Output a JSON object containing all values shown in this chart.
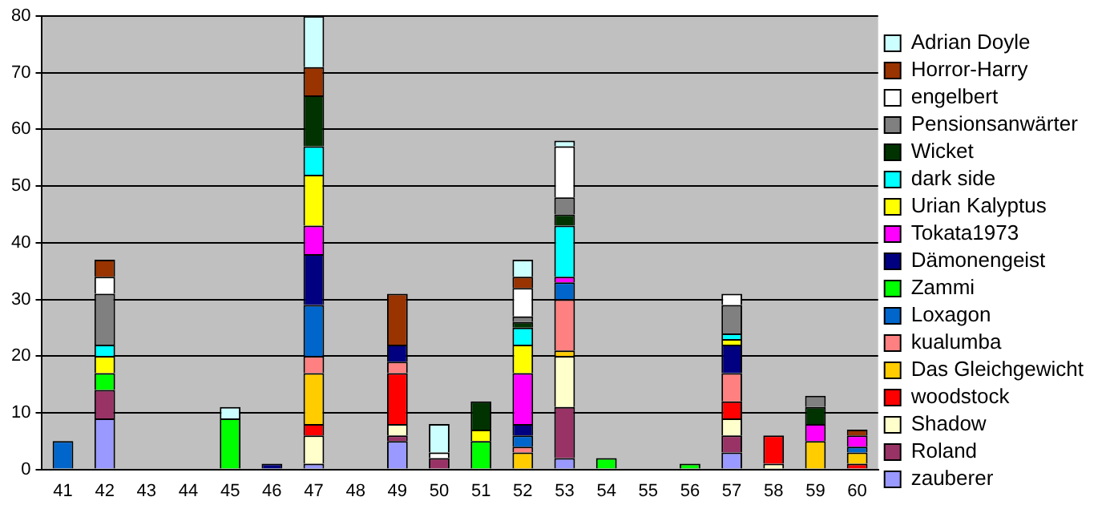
{
  "chart_data": {
    "type": "bar",
    "stacked": true,
    "legend": "right",
    "grid": "y",
    "categories": [
      "41",
      "42",
      "43",
      "44",
      "45",
      "46",
      "47",
      "48",
      "49",
      "50",
      "51",
      "52",
      "53",
      "54",
      "55",
      "56",
      "57",
      "58",
      "59",
      "60"
    ],
    "ylim": [
      0,
      80
    ],
    "yticks": [
      0,
      10,
      20,
      30,
      40,
      50,
      60,
      70,
      80
    ],
    "series": [
      {
        "name": "zauberer",
        "color": "#9999ff",
        "values": [
          null,
          9,
          null,
          null,
          null,
          null,
          1,
          null,
          5,
          null,
          null,
          null,
          2,
          null,
          null,
          null,
          3,
          null,
          null,
          null
        ]
      },
      {
        "name": "Roland",
        "color": "#993366",
        "values": [
          null,
          5,
          null,
          null,
          null,
          null,
          null,
          null,
          1,
          2,
          null,
          null,
          9,
          null,
          null,
          null,
          3,
          null,
          null,
          null
        ]
      },
      {
        "name": "Shadow",
        "color": "#ffffcc",
        "values": [
          null,
          null,
          null,
          null,
          null,
          null,
          5,
          null,
          2,
          null,
          null,
          null,
          9,
          null,
          null,
          null,
          3,
          1,
          null,
          null
        ]
      },
      {
        "name": "woodstock",
        "color": "#ff0000",
        "values": [
          null,
          null,
          null,
          null,
          null,
          null,
          2,
          null,
          9,
          null,
          null,
          null,
          null,
          null,
          null,
          null,
          3,
          5,
          null,
          1
        ]
      },
      {
        "name": "Das Gleichgewicht",
        "color": "#ffcc00",
        "values": [
          null,
          null,
          null,
          null,
          null,
          null,
          9,
          null,
          null,
          null,
          null,
          3,
          1,
          null,
          null,
          null,
          null,
          null,
          5,
          2
        ]
      },
      {
        "name": "kualumba",
        "color": "#ff8080",
        "values": [
          null,
          null,
          null,
          null,
          null,
          null,
          3,
          null,
          2,
          null,
          null,
          1,
          9,
          null,
          null,
          null,
          5,
          null,
          null,
          null
        ]
      },
      {
        "name": "Loxagon",
        "color": "#0066cc",
        "values": [
          5,
          null,
          null,
          null,
          null,
          null,
          9,
          null,
          null,
          null,
          null,
          2,
          3,
          null,
          null,
          null,
          null,
          null,
          null,
          1
        ]
      },
      {
        "name": "Zammi",
        "color": "#00ff00",
        "values": [
          null,
          3,
          null,
          null,
          9,
          null,
          null,
          null,
          null,
          null,
          5,
          null,
          null,
          2,
          null,
          1,
          null,
          null,
          null,
          null
        ]
      },
      {
        "name": "Dämonengeist",
        "color": "#000080",
        "values": [
          null,
          null,
          null,
          null,
          null,
          1,
          9,
          null,
          3,
          null,
          null,
          2,
          null,
          null,
          null,
          null,
          5,
          null,
          null,
          null
        ]
      },
      {
        "name": "Tokata1973",
        "color": "#ff00ff",
        "values": [
          null,
          null,
          null,
          null,
          null,
          null,
          5,
          null,
          null,
          null,
          null,
          9,
          1,
          null,
          null,
          null,
          null,
          null,
          3,
          2
        ]
      },
      {
        "name": "Urian Kalyptus",
        "color": "#ffff00",
        "values": [
          null,
          3,
          null,
          null,
          null,
          null,
          9,
          null,
          null,
          null,
          2,
          5,
          null,
          null,
          null,
          null,
          1,
          null,
          null,
          null
        ]
      },
      {
        "name": "dark side",
        "color": "#00ffff",
        "values": [
          null,
          2,
          null,
          null,
          null,
          null,
          5,
          null,
          null,
          null,
          null,
          3,
          9,
          null,
          null,
          null,
          1,
          null,
          null,
          null
        ]
      },
      {
        "name": "Wicket",
        "color": "#003300",
        "values": [
          null,
          null,
          null,
          null,
          null,
          null,
          9,
          null,
          null,
          null,
          5,
          1,
          2,
          null,
          null,
          null,
          null,
          null,
          3,
          null
        ]
      },
      {
        "name": "Pensionsanwärter",
        "color": "#808080",
        "values": [
          null,
          9,
          null,
          null,
          null,
          null,
          null,
          null,
          null,
          null,
          null,
          1,
          3,
          null,
          null,
          null,
          5,
          null,
          2,
          null
        ]
      },
      {
        "name": "engelbert",
        "color": "#ffffff",
        "values": [
          null,
          3,
          null,
          null,
          null,
          null,
          null,
          null,
          null,
          1,
          null,
          5,
          9,
          null,
          null,
          null,
          2,
          null,
          null,
          null
        ]
      },
      {
        "name": "Horror-Harry",
        "color": "#993300",
        "values": [
          null,
          3,
          null,
          null,
          null,
          null,
          5,
          null,
          9,
          null,
          null,
          2,
          null,
          null,
          null,
          null,
          null,
          null,
          null,
          1
        ]
      },
      {
        "name": "Adrian Doyle",
        "color": "#ccffff",
        "values": [
          null,
          null,
          null,
          null,
          2,
          null,
          9,
          null,
          null,
          5,
          null,
          3,
          1,
          null,
          null,
          null,
          null,
          null,
          null,
          null
        ]
      }
    ]
  }
}
